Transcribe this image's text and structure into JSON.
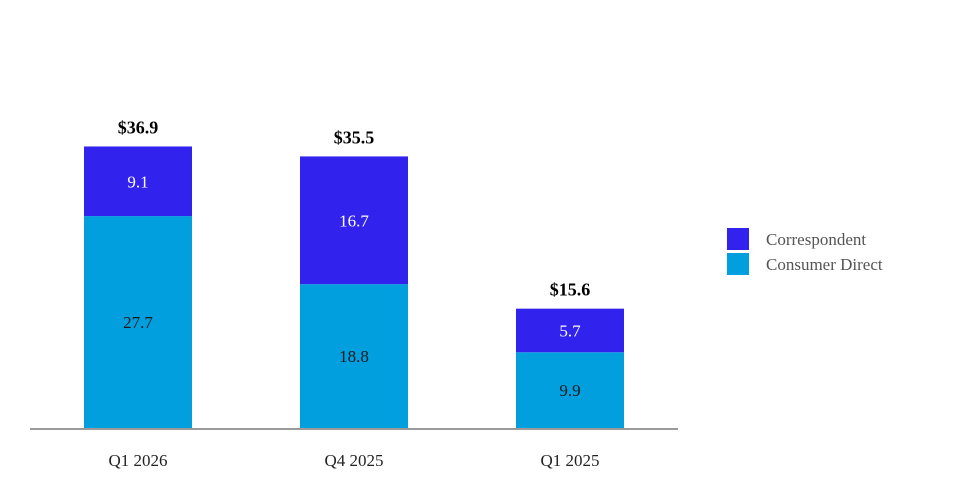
{
  "chart_data": {
    "type": "bar",
    "stacked": true,
    "categories": [
      "Q1 2026",
      "Q4 2025",
      "Q1 2025"
    ],
    "series": [
      {
        "name": "Consumer Direct",
        "values": [
          27.7,
          18.8,
          9.9
        ],
        "color": "#029fdf",
        "label_color": "#1a1a1a"
      },
      {
        "name": "Correspondent",
        "values": [
          9.1,
          16.7,
          5.7
        ],
        "color": "#3222ee",
        "label_color": "#ffffff"
      }
    ],
    "totals": [
      "$36.9",
      "$35.5",
      "$15.6"
    ],
    "legend": {
      "placement": "right",
      "order": [
        "Correspondent",
        "Consumer Direct"
      ]
    },
    "grid": false,
    "axis_color": "#9a9a9a"
  }
}
